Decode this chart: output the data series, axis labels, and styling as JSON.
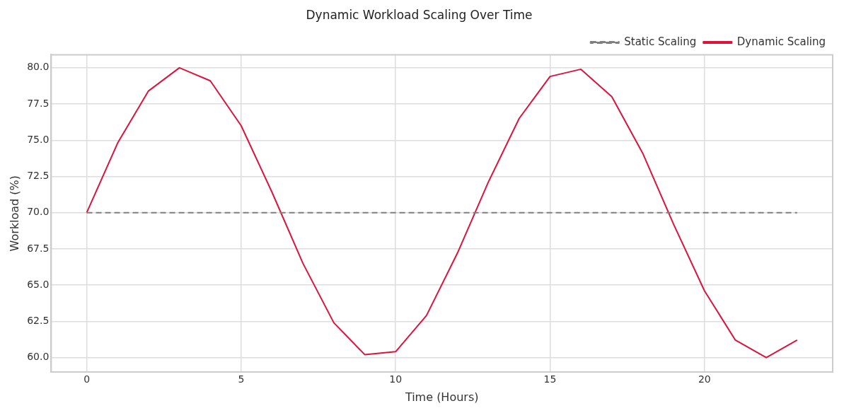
{
  "chart_data": {
    "type": "line",
    "title": "Dynamic Workload Scaling Over Time",
    "xlabel": "Time (Hours)",
    "ylabel": "Workload (%)",
    "x": [
      0,
      1,
      2,
      3,
      4,
      5,
      6,
      7,
      8,
      9,
      10,
      11,
      12,
      13,
      14,
      15,
      16,
      17,
      18,
      19,
      20,
      21,
      22,
      23
    ],
    "series": [
      {
        "name": "Static Scaling",
        "color": "#808080",
        "line_style": "dashed",
        "values": [
          70,
          70,
          70,
          70,
          70,
          70,
          70,
          70,
          70,
          70,
          70,
          70,
          70,
          70,
          70,
          70,
          70,
          70,
          70,
          70,
          70,
          70,
          70,
          70
        ]
      },
      {
        "name": "Dynamic Scaling",
        "color": "#dc143c",
        "line_style": "solid",
        "values": [
          70,
          74.8,
          78.4,
          80.0,
          79.1,
          76.0,
          71.4,
          66.5,
          62.4,
          60.2,
          60.4,
          62.9,
          67.2,
          72.1,
          76.5,
          79.4,
          79.9,
          78.0,
          74.1,
          69.2,
          64.6,
          61.2,
          60.0,
          61.2
        ]
      }
    ],
    "xlim": [
      -1.15,
      24.15
    ],
    "xticks": [
      0,
      5,
      10,
      15,
      20
    ],
    "ylim": [
      59.0,
      80.9
    ],
    "yticks": [
      {
        "value": 60,
        "label": "60.0"
      },
      {
        "value": 62.5,
        "label": "62.5"
      },
      {
        "value": 65,
        "label": "65.0"
      },
      {
        "value": 67.5,
        "label": "67.5"
      },
      {
        "value": 70,
        "label": "70.0"
      },
      {
        "value": 72.5,
        "label": "72.5"
      },
      {
        "value": 75,
        "label": "75.0"
      },
      {
        "value": 77.5,
        "label": "77.5"
      },
      {
        "value": 80,
        "label": "80.0"
      }
    ],
    "grid": true,
    "legend": "top right",
    "marker": "none"
  }
}
